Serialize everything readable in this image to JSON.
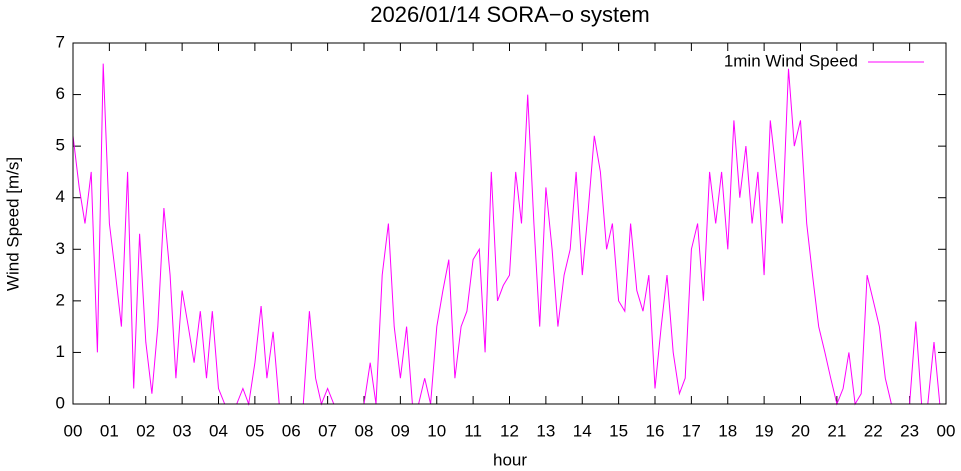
{
  "chart_data": {
    "type": "line",
    "title": "2026/01/14 SORA−o system",
    "x_label": "hour",
    "y_label": "Wind Speed [m/s]",
    "legend": "top-right",
    "grid": false,
    "xlim": [
      0,
      24
    ],
    "ylim": [
      0,
      7
    ],
    "xticks": [
      {
        "value": 0,
        "label": "00"
      },
      {
        "value": 1,
        "label": "01"
      },
      {
        "value": 2,
        "label": "02"
      },
      {
        "value": 3,
        "label": "03"
      },
      {
        "value": 4,
        "label": "04"
      },
      {
        "value": 5,
        "label": "05"
      },
      {
        "value": 6,
        "label": "06"
      },
      {
        "value": 7,
        "label": "07"
      },
      {
        "value": 8,
        "label": "08"
      },
      {
        "value": 9,
        "label": "09"
      },
      {
        "value": 10,
        "label": "10"
      },
      {
        "value": 11,
        "label": "11"
      },
      {
        "value": 12,
        "label": "12"
      },
      {
        "value": 13,
        "label": "13"
      },
      {
        "value": 14,
        "label": "14"
      },
      {
        "value": 15,
        "label": "15"
      },
      {
        "value": 16,
        "label": "16"
      },
      {
        "value": 17,
        "label": "17"
      },
      {
        "value": 18,
        "label": "18"
      },
      {
        "value": 19,
        "label": "19"
      },
      {
        "value": 20,
        "label": "20"
      },
      {
        "value": 21,
        "label": "21"
      },
      {
        "value": 22,
        "label": "22"
      },
      {
        "value": 23,
        "label": "23"
      },
      {
        "value": 24,
        "label": "00"
      }
    ],
    "yticks": [
      0,
      1,
      2,
      3,
      4,
      5,
      6,
      7
    ],
    "x": [
      0,
      0.17,
      0.33,
      0.5,
      0.67,
      0.83,
      1,
      1.17,
      1.33,
      1.5,
      1.67,
      1.83,
      2,
      2.17,
      2.33,
      2.5,
      2.67,
      2.83,
      3,
      3.17,
      3.33,
      3.5,
      3.67,
      3.83,
      4,
      4.17,
      4.33,
      4.5,
      4.67,
      4.83,
      5,
      5.17,
      5.33,
      5.5,
      5.67,
      5.83,
      6,
      6.17,
      6.33,
      6.5,
      6.67,
      6.83,
      7,
      7.17,
      7.33,
      7.5,
      7.67,
      7.83,
      8,
      8.17,
      8.33,
      8.5,
      8.67,
      8.83,
      9,
      9.17,
      9.33,
      9.5,
      9.67,
      9.83,
      10,
      10.17,
      10.33,
      10.5,
      10.67,
      10.83,
      11,
      11.17,
      11.33,
      11.5,
      11.67,
      11.83,
      12,
      12.17,
      12.33,
      12.5,
      12.67,
      12.83,
      13,
      13.17,
      13.33,
      13.5,
      13.67,
      13.83,
      14,
      14.17,
      14.33,
      14.5,
      14.67,
      14.83,
      15,
      15.17,
      15.33,
      15.5,
      15.67,
      15.83,
      16,
      16.17,
      16.33,
      16.5,
      16.67,
      16.83,
      17,
      17.17,
      17.33,
      17.5,
      17.67,
      17.83,
      18,
      18.17,
      18.33,
      18.5,
      18.67,
      18.83,
      19,
      19.17,
      19.33,
      19.5,
      19.67,
      19.83,
      20,
      20.17,
      20.33,
      20.5,
      20.67,
      20.83,
      21,
      21.17,
      21.33,
      21.5,
      21.67,
      21.83,
      22,
      22.17,
      22.33,
      22.5,
      22.67,
      22.83,
      23,
      23.17,
      23.33,
      23.5,
      23.67,
      23.83
    ],
    "series": [
      {
        "name": "1min Wind Speed",
        "color": "#ff00ff",
        "values": [
          5.2,
          4.2,
          3.5,
          4.5,
          1.0,
          6.6,
          3.5,
          2.5,
          1.5,
          4.5,
          0.3,
          3.3,
          1.2,
          0.2,
          1.5,
          3.8,
          2.5,
          0.5,
          2.2,
          1.5,
          0.8,
          1.8,
          0.5,
          1.8,
          0.3,
          0,
          0,
          0,
          0.3,
          0,
          0.8,
          1.9,
          0.5,
          1.4,
          0,
          0,
          0,
          0,
          0,
          1.8,
          0.5,
          0,
          0.3,
          0,
          0,
          0,
          0,
          0,
          0,
          0.8,
          0,
          2.5,
          3.5,
          1.5,
          0.5,
          1.5,
          0,
          0,
          0.5,
          0,
          1.5,
          2.2,
          2.8,
          0.5,
          1.5,
          1.8,
          2.8,
          3.0,
          1.0,
          4.5,
          2.0,
          2.3,
          2.5,
          4.5,
          3.5,
          6.0,
          3.5,
          1.5,
          4.2,
          3.0,
          1.5,
          2.5,
          3.0,
          4.5,
          2.5,
          3.8,
          5.2,
          4.5,
          3.0,
          3.5,
          2.0,
          1.8,
          3.5,
          2.2,
          1.8,
          2.5,
          0.3,
          1.5,
          2.5,
          1.0,
          0.2,
          0.5,
          3.0,
          3.5,
          2.0,
          4.5,
          3.5,
          4.5,
          3.0,
          5.5,
          4.0,
          5.0,
          3.5,
          4.5,
          2.5,
          5.5,
          4.5,
          3.5,
          6.5,
          5.0,
          5.5,
          3.5,
          2.5,
          1.5,
          1.0,
          0.5,
          0,
          0.3,
          1.0,
          0,
          0.2,
          2.5,
          2.0,
          1.5,
          0.5,
          0,
          0,
          0,
          0,
          1.6,
          0,
          0,
          1.2,
          0
        ]
      }
    ]
  }
}
